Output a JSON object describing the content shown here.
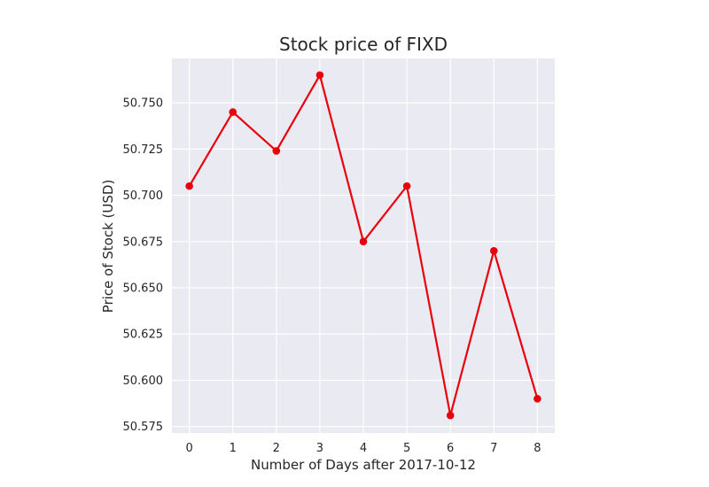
{
  "chart_data": {
    "type": "line",
    "title": "Stock price of FIXD",
    "xlabel": "Number of Days after 2017-10-12",
    "ylabel": "Price of Stock (USD)",
    "x": [
      0,
      1,
      2,
      3,
      4,
      5,
      6,
      7,
      8
    ],
    "series": [
      {
        "values": [
          50.705,
          50.745,
          50.724,
          50.765,
          50.675,
          50.705,
          50.581,
          50.67,
          50.59
        ]
      }
    ],
    "x_ticks": [
      "0",
      "1",
      "2",
      "3",
      "4",
      "5",
      "6",
      "7",
      "8"
    ],
    "y_ticks": [
      "50.575",
      "50.600",
      "50.625",
      "50.650",
      "50.675",
      "50.700",
      "50.725",
      "50.750"
    ],
    "xlim": [
      -0.4,
      8.4
    ],
    "ylim": [
      50.5715,
      50.774
    ],
    "grid": true,
    "colors": {
      "background": "#eaeaf2",
      "grid": "#ffffff",
      "line": "#e8000b",
      "marker": "#e8000b"
    }
  }
}
